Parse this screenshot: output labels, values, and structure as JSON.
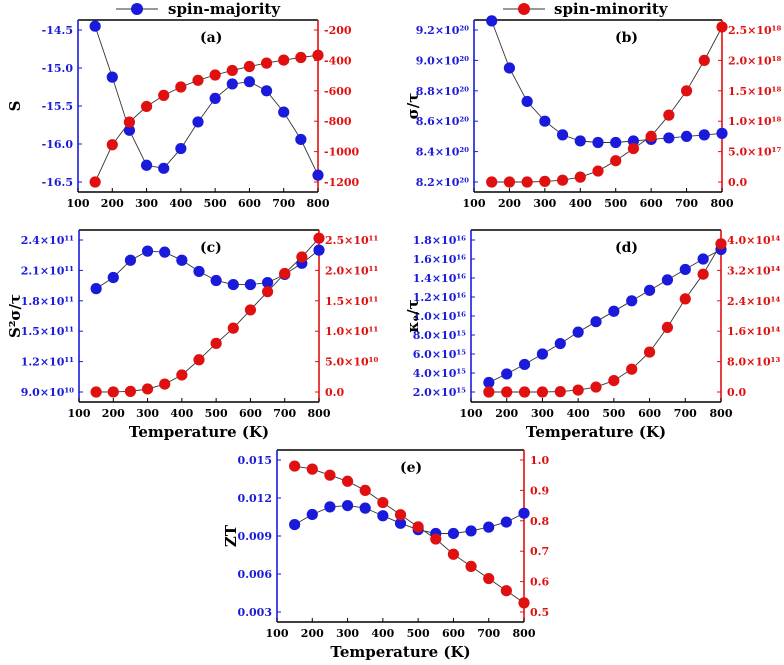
{
  "colors": {
    "majority": "#1a1adb",
    "minority": "#e01010",
    "axis": "#000000",
    "line": "#333333"
  },
  "legend": {
    "majority_label": "spin-majority",
    "minority_label": "spin-minority"
  },
  "chart_data": [
    {
      "id": "a",
      "type": "line",
      "panel_label": "(a)",
      "xlabel": "",
      "ylabel": "S",
      "ylabel_html": "S",
      "x": [
        150,
        200,
        250,
        300,
        350,
        400,
        450,
        500,
        550,
        600,
        650,
        700,
        750,
        800
      ],
      "xlim": [
        100,
        800
      ],
      "xticks": [
        100,
        200,
        300,
        400,
        500,
        600,
        700,
        800
      ],
      "left_axis": {
        "ylim": [
          -16.5,
          -14.5
        ],
        "ticks": [
          -16.5,
          -16.0,
          -15.5,
          -15.0,
          -14.5
        ],
        "tick_labels": [
          "-16.5",
          "-16.0",
          "-15.5",
          "-15.0",
          "-14.5"
        ]
      },
      "right_axis": {
        "ylim": [
          -1200,
          -200
        ],
        "ticks": [
          -1200,
          -1000,
          -800,
          -600,
          -400,
          -200
        ],
        "tick_labels": [
          "-1200",
          "-1000",
          "-800",
          "-600",
          "-400",
          "-200"
        ]
      },
      "series": [
        {
          "name": "spin-majority",
          "axis": "left",
          "values": [
            -14.45,
            -15.12,
            -15.82,
            -16.28,
            -16.32,
            -16.06,
            -15.71,
            -15.4,
            -15.21,
            -15.18,
            -15.3,
            -15.58,
            -15.94,
            -16.41
          ]
        },
        {
          "name": "spin-minority",
          "axis": "right",
          "values": [
            -1200,
            -955,
            -806,
            -703,
            -630,
            -575,
            -531,
            -496,
            -466,
            -440,
            -418,
            -398,
            -381,
            -366
          ]
        }
      ]
    },
    {
      "id": "b",
      "type": "line",
      "panel_label": "(b)",
      "xlabel": "",
      "ylabel": "σ/τ",
      "ylabel_html": "σ/τ",
      "x": [
        150,
        200,
        250,
        300,
        350,
        400,
        450,
        500,
        550,
        600,
        650,
        700,
        750,
        800
      ],
      "xlim": [
        100,
        800
      ],
      "xticks": [
        100,
        200,
        300,
        400,
        500,
        600,
        700,
        800
      ],
      "left_axis": {
        "ylim": [
          8.2e+20,
          9.2e+20
        ],
        "ticks": [
          8.2e+20,
          8.4e+20,
          8.6e+20,
          8.8e+20,
          9e+20,
          9.2e+20
        ],
        "tick_labels": [
          "8.2×10²⁰",
          "8.4×10²⁰",
          "8.6×10²⁰",
          "8.8×10²⁰",
          "9.0×10²⁰",
          "9.2×10²⁰"
        ]
      },
      "right_axis": {
        "ylim": [
          0,
          2.5e+18
        ],
        "ticks": [
          0,
          5e+17,
          1e+18,
          1.5e+18,
          2e+18,
          2.5e+18
        ],
        "tick_labels": [
          "0.0",
          "5.0×10¹⁷",
          "1.0×10¹⁸",
          "1.5×10¹⁸",
          "2.0×10¹⁸",
          "2.5×10¹⁸"
        ]
      },
      "series": [
        {
          "name": "spin-majority",
          "axis": "left",
          "values": [
            9.26e+20,
            8.95e+20,
            8.73e+20,
            8.6e+20,
            8.51e+20,
            8.47e+20,
            8.46e+20,
            8.46e+20,
            8.47e+20,
            8.48e+20,
            8.49e+20,
            8.5e+20,
            8.51e+20,
            8.52e+20
          ]
        },
        {
          "name": "spin-minority",
          "axis": "right",
          "values": [
            0,
            0,
            0,
            1e+16,
            3e+16,
            8e+16,
            1.8e+17,
            3.5e+17,
            5.5e+17,
            7.5e+17,
            1.1e+18,
            1.5e+18,
            2e+18,
            2.55e+18
          ]
        }
      ]
    },
    {
      "id": "c",
      "type": "line",
      "panel_label": "(c)",
      "xlabel": "Temperature (K)",
      "ylabel": "S²σ/τ",
      "ylabel_html": "S2σ/τ",
      "x": [
        150,
        200,
        250,
        300,
        350,
        400,
        450,
        500,
        550,
        600,
        650,
        700,
        750,
        800
      ],
      "xlim": [
        100,
        800
      ],
      "xticks": [
        100,
        200,
        300,
        400,
        500,
        600,
        700,
        800
      ],
      "left_axis": {
        "ylim": [
          90000000000.0,
          240000000000.0
        ],
        "ticks": [
          90000000000.0,
          120000000000.0,
          150000000000.0,
          180000000000.0,
          210000000000.0,
          240000000000.0
        ],
        "tick_labels": [
          "9.0×10¹⁰",
          "1.2×10¹¹",
          "1.5×10¹¹",
          "1.8×10¹¹",
          "2.1×10¹¹",
          "2.4×10¹¹"
        ]
      },
      "right_axis": {
        "ylim": [
          0,
          250000000000.0
        ],
        "ticks": [
          0,
          50000000000.0,
          100000000000.0,
          150000000000.0,
          200000000000.0,
          250000000000.0
        ],
        "tick_labels": [
          "0.0",
          "5.0×10¹⁰",
          "1.0×10¹¹",
          "1.5×10¹¹",
          "2.0×10¹¹",
          "2.5×10¹¹"
        ]
      },
      "series": [
        {
          "name": "spin-majority",
          "axis": "left",
          "values": [
            192000000000.0,
            203000000000.0,
            220000000000.0,
            229000000000.0,
            228000000000.0,
            220000000000.0,
            209000000000.0,
            200000000000.0,
            196000000000.0,
            196000000000.0,
            198000000000.0,
            206000000000.0,
            217000000000.0,
            230000000000.0
          ]
        },
        {
          "name": "spin-minority",
          "axis": "right",
          "values": [
            0,
            100000000.0,
            1000000000.0,
            5000000000.0,
            13000000000.0,
            28000000000.0,
            53000000000.0,
            80000000000.0,
            105000000000.0,
            135000000000.0,
            165000000000.0,
            195000000000.0,
            222000000000.0,
            253000000000.0
          ]
        }
      ]
    },
    {
      "id": "d",
      "type": "line",
      "panel_label": "(d)",
      "xlabel": "Temperature (K)",
      "ylabel": "κₑ/τ",
      "ylabel_html": "κe/τ",
      "x": [
        150,
        200,
        250,
        300,
        350,
        400,
        450,
        500,
        550,
        600,
        650,
        700,
        750,
        800
      ],
      "xlim": [
        100,
        800
      ],
      "xticks": [
        100,
        200,
        300,
        400,
        500,
        600,
        700,
        800
      ],
      "left_axis": {
        "ylim": [
          2000000000000000.0,
          1.8e+16
        ],
        "ticks": [
          2000000000000000.0,
          4000000000000000.0,
          6000000000000000.0,
          8000000000000000.0,
          1e+16,
          1.2e+16,
          1.4e+16,
          1.6e+16,
          1.8e+16
        ],
        "tick_labels": [
          "2.0×10¹⁵",
          "4.0×10¹⁵",
          "6.0×10¹⁵",
          "8.0×10¹⁵",
          "1.0×10¹⁶",
          "1.2×10¹⁶",
          "1.4×10¹⁶",
          "1.6×10¹⁶",
          "1.8×10¹⁶"
        ]
      },
      "right_axis": {
        "ylim": [
          0,
          400000000000000.0
        ],
        "ticks": [
          0,
          80000000000000.0,
          160000000000000.0,
          240000000000000.0,
          320000000000000.0,
          400000000000000.0
        ],
        "tick_labels": [
          "0.0",
          "8.0×10¹³",
          "1.6×10¹⁴",
          "2.4×10¹⁴",
          "3.2×10¹⁴",
          "4.0×10¹⁴"
        ]
      },
      "series": [
        {
          "name": "spin-majority",
          "axis": "left",
          "values": [
            3000000000000000.0,
            3900000000000000.0,
            4900000000000000.0,
            6000000000000000.0,
            7100000000000000.0,
            8300000000000000.0,
            9400000000000000.0,
            1.05e+16,
            1.16e+16,
            1.27e+16,
            1.38e+16,
            1.49e+16,
            1.6e+16,
            1.7e+16
          ]
        },
        {
          "name": "spin-minority",
          "axis": "right",
          "values": [
            0,
            0,
            0,
            0,
            1000000000000.0,
            5000000000000.0,
            13000000000000.0,
            30000000000000.0,
            60000000000000.0,
            105000000000000.0,
            170000000000000.0,
            245000000000000.0,
            310000000000000.0,
            390000000000000.0
          ]
        }
      ]
    },
    {
      "id": "e",
      "type": "line",
      "panel_label": "(e)",
      "xlabel": "Temperature (K)",
      "ylabel": "ZT",
      "ylabel_html": "ZT",
      "x": [
        150,
        200,
        250,
        300,
        350,
        400,
        450,
        500,
        550,
        600,
        650,
        700,
        750,
        800
      ],
      "xlim": [
        100,
        800
      ],
      "xticks": [
        100,
        200,
        300,
        400,
        500,
        600,
        700,
        800
      ],
      "left_axis": {
        "ylim": [
          0.003,
          0.015
        ],
        "ticks": [
          0.003,
          0.006,
          0.009,
          0.012,
          0.015
        ],
        "tick_labels": [
          "0.003",
          "0.006",
          "0.009",
          "0.012",
          "0.015"
        ]
      },
      "right_axis": {
        "ylim": [
          0.5,
          1.0
        ],
        "ticks": [
          0.5,
          0.6,
          0.7,
          0.8,
          0.9,
          1.0
        ],
        "tick_labels": [
          "0.5",
          "0.6",
          "0.7",
          "0.8",
          "0.9",
          "1.0"
        ]
      },
      "series": [
        {
          "name": "spin-majority",
          "axis": "left",
          "values": [
            0.0099,
            0.0107,
            0.0113,
            0.0114,
            0.0112,
            0.0106,
            0.01,
            0.0095,
            0.0092,
            0.0092,
            0.0094,
            0.0097,
            0.0101,
            0.0108
          ]
        },
        {
          "name": "spin-minority",
          "axis": "right",
          "values": [
            0.98,
            0.97,
            0.95,
            0.93,
            0.9,
            0.86,
            0.82,
            0.78,
            0.74,
            0.69,
            0.65,
            0.61,
            0.57,
            0.53
          ]
        }
      ]
    }
  ]
}
